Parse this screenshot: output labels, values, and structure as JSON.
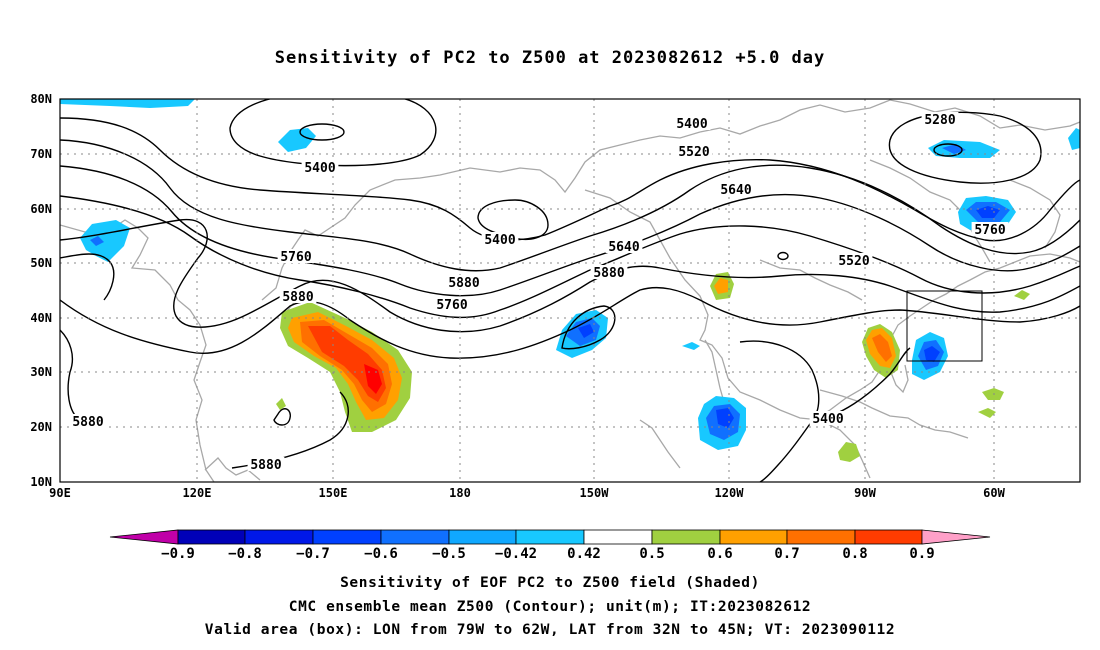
{
  "title": "Sensitivity of PC2 to Z500 at 2023082612 +5.0 day",
  "map": {
    "lon_labels": [
      "90E",
      "120E",
      "150E",
      "180",
      "150W",
      "120W",
      "90W",
      "60W"
    ],
    "lat_labels": [
      "80N",
      "70N",
      "60N",
      "50N",
      "40N",
      "30N",
      "20N",
      "10N"
    ],
    "contour_labels": [
      "5400",
      "5280",
      "5520",
      "5640",
      "5400",
      "5400",
      "5760",
      "5760",
      "5520",
      "5880",
      "5640",
      "5880",
      "5760",
      "5880",
      "5880",
      "5880",
      "5400"
    ],
    "colors": {
      "land": "#a8a8a8",
      "contour": "#000000",
      "grid": "#888888"
    }
  },
  "colorbar": {
    "labels": [
      "-0.9",
      "-0.8",
      "-0.7",
      "-0.6",
      "-0.5",
      "-0.42",
      "0.42",
      "0.5",
      "0.6",
      "0.7",
      "0.8",
      "0.9"
    ],
    "colors": [
      "#c000a8",
      "#0000b8",
      "#0018e8",
      "#0040ff",
      "#1070ff",
      "#10a8ff",
      "#18c8ff",
      "#ffffff",
      "#a0d040",
      "#ffa000",
      "#ff7000",
      "#ff3c00",
      "#ff0000",
      "#ffa0c8"
    ]
  },
  "captions": {
    "line1": "Sensitivity of EOF PC2 to Z500 field (Shaded)",
    "line2": "CMC ensemble mean Z500 (Contour); unit(m); IT:2023082612",
    "line3": "Valid area (box): LON from 79W to 62W, LAT from 32N to 45N; VT: 2023090112"
  }
}
